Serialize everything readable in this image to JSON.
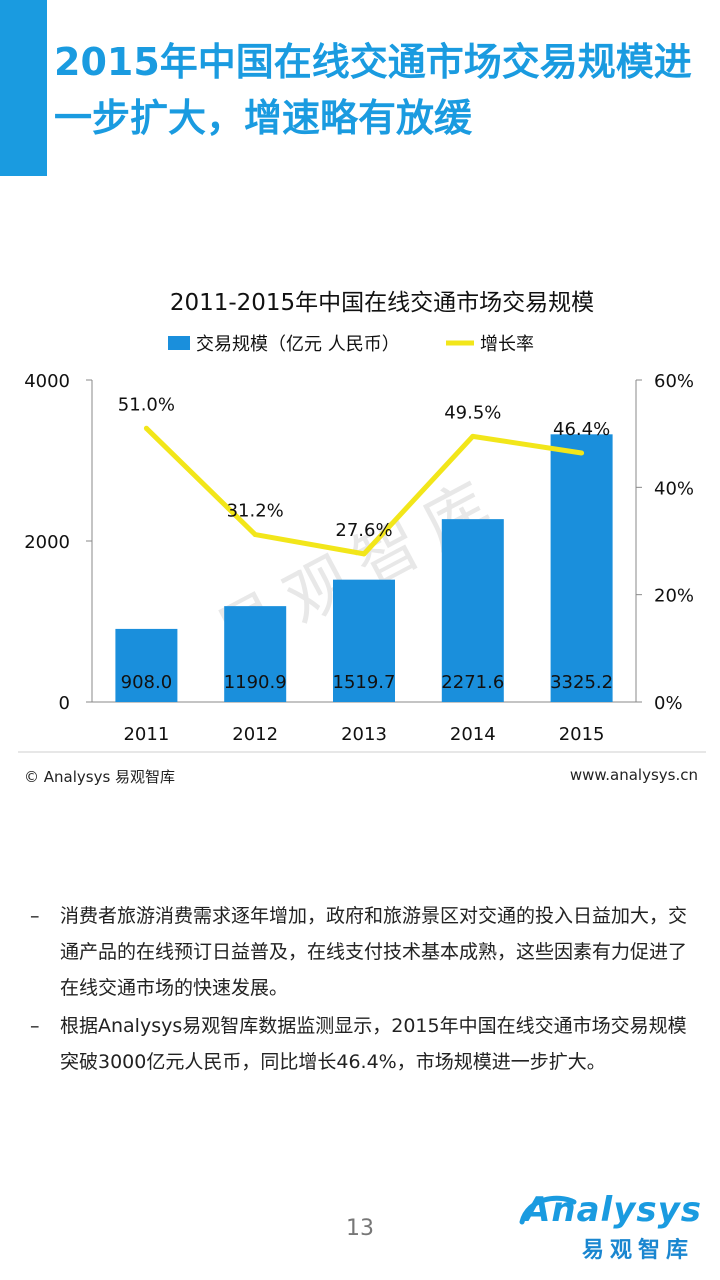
{
  "slide": {
    "title": "2015年中国在线交通市场交易规模进一步扩大，增速略有放缓",
    "page_number": "13",
    "accent_color": "#1a9be0"
  },
  "footer": {
    "copyright": "© Analysys 易观智库",
    "website": "www.analysys.cn"
  },
  "watermark": "易观智库",
  "bullets": [
    {
      "marker": "–",
      "text": "消费者旅游消费需求逐年增加，政府和旅游景区对交通的投入日益加大，交通产品的在线预订日益普及，在线支付技术基本成熟，这些因素有力促进了在线交通市场的快速发展。"
    },
    {
      "marker": "–",
      "text": "根据Analysys易观智库数据监测显示，2015年中国在线交通市场交易规模突破3000亿元人民币，同比增长46.4%，市场规模进一步扩大。"
    }
  ],
  "logo": {
    "wordmark": "Analysys",
    "chinese": "易观智库"
  },
  "chart_data": {
    "type": "bar",
    "title": "2011-2015年中国在线交通市场交易规模",
    "categories": [
      "2011",
      "2012",
      "2013",
      "2014",
      "2015"
    ],
    "series": [
      {
        "name": "交易规模（亿元 人民币）",
        "type": "bar",
        "axis": "left",
        "color": "#1a8fdc",
        "values": [
          908.0,
          1190.9,
          1519.7,
          2271.6,
          3325.2
        ],
        "labels": [
          "908.0",
          "1190.9",
          "1519.7",
          "2271.6",
          "3325.2"
        ]
      },
      {
        "name": "增长率",
        "type": "line",
        "axis": "right",
        "color": "#f2e61a",
        "values": [
          51.0,
          31.2,
          27.6,
          49.5,
          46.4
        ],
        "labels": [
          "51.0%",
          "31.2%",
          "27.6%",
          "49.5%",
          "46.4%"
        ]
      }
    ],
    "y_left": {
      "min": 0,
      "max": 4000,
      "ticks": [
        0,
        2000,
        4000
      ],
      "tick_labels": [
        "0",
        "2000",
        "4000"
      ]
    },
    "y_right": {
      "min": 0,
      "max": 60,
      "ticks": [
        0,
        20,
        40,
        60
      ],
      "tick_labels": [
        "0%",
        "20%",
        "40%",
        "60%"
      ]
    },
    "legend_position": "top",
    "grid": false
  }
}
